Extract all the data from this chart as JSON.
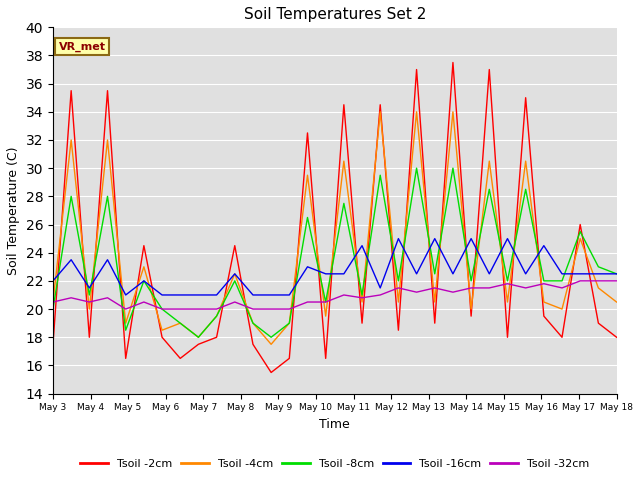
{
  "title": "Soil Temperatures Set 2",
  "xlabel": "Time",
  "ylabel": "Soil Temperature (C)",
  "ylim": [
    14,
    40
  ],
  "yticks": [
    14,
    16,
    18,
    20,
    22,
    24,
    26,
    28,
    30,
    32,
    34,
    36,
    38,
    40
  ],
  "annotation": "VR_met",
  "colors": {
    "tsoil_2cm": "#ff0000",
    "tsoil_4cm": "#ff8800",
    "tsoil_8cm": "#00dd00",
    "tsoil_16cm": "#0000ee",
    "tsoil_32cm": "#bb00bb"
  },
  "legend": [
    "Tsoil -2cm",
    "Tsoil -4cm",
    "Tsoil -8cm",
    "Tsoil -16cm",
    "Tsoil -32cm"
  ],
  "x_tick_labels": [
    "May 3",
    "May 4",
    "May 5",
    "May 6",
    "May 7",
    "May 8",
    "May 9",
    "May 10",
    "May 11",
    "May 12",
    "May 13",
    "May 14",
    "May 15",
    "May 16",
    "May 17",
    "May 18"
  ],
  "background_color": "#e0e0e0",
  "tsoil_2cm": [
    17.5,
    35.5,
    18.0,
    35.5,
    16.5,
    24.5,
    18.0,
    16.5,
    17.5,
    18.0,
    24.5,
    17.5,
    15.5,
    16.5,
    32.5,
    16.5,
    34.5,
    19.0,
    34.5,
    18.5,
    37.0,
    19.0,
    37.5,
    19.5,
    37.0,
    18.0,
    35.0,
    19.5,
    18.0,
    26.0,
    19.0,
    18.0
  ],
  "tsoil_4cm": [
    20.5,
    32.0,
    20.0,
    32.0,
    19.0,
    23.0,
    18.5,
    19.0,
    18.0,
    19.5,
    22.5,
    19.0,
    17.5,
    19.0,
    29.5,
    19.5,
    30.5,
    20.5,
    34.0,
    20.5,
    34.0,
    20.5,
    34.0,
    20.0,
    30.5,
    20.5,
    30.5,
    20.5,
    20.0,
    25.0,
    21.5,
    20.5
  ],
  "tsoil_8cm": [
    20.0,
    28.0,
    21.0,
    28.0,
    18.5,
    22.0,
    20.0,
    19.0,
    18.0,
    19.5,
    22.0,
    19.0,
    18.0,
    19.0,
    26.5,
    20.5,
    27.5,
    21.0,
    29.5,
    22.0,
    30.0,
    22.5,
    30.0,
    22.0,
    28.5,
    22.0,
    28.5,
    22.0,
    22.0,
    25.5,
    23.0,
    22.5
  ],
  "tsoil_16cm": [
    22.0,
    23.5,
    21.5,
    23.5,
    21.0,
    22.0,
    21.0,
    21.0,
    21.0,
    21.0,
    22.5,
    21.0,
    21.0,
    21.0,
    23.0,
    22.5,
    22.5,
    24.5,
    21.5,
    25.0,
    22.5,
    25.0,
    22.5,
    25.0,
    22.5,
    25.0,
    22.5,
    24.5,
    22.5,
    22.5,
    22.5,
    22.5
  ],
  "tsoil_32cm": [
    20.5,
    20.8,
    20.5,
    20.8,
    20.0,
    20.5,
    20.0,
    20.0,
    20.0,
    20.0,
    20.5,
    20.0,
    20.0,
    20.0,
    20.5,
    20.5,
    21.0,
    20.8,
    21.0,
    21.5,
    21.2,
    21.5,
    21.2,
    21.5,
    21.5,
    21.8,
    21.5,
    21.8,
    21.5,
    22.0,
    22.0,
    22.0
  ]
}
